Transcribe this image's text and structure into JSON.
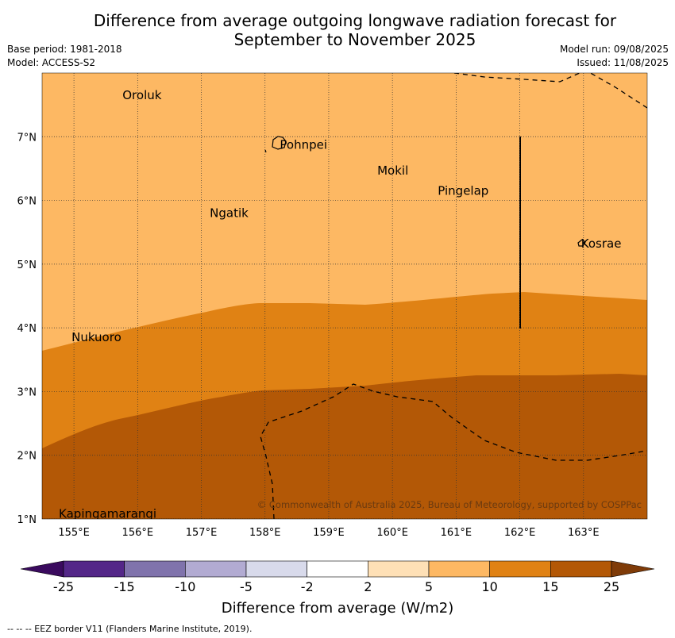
{
  "title_line1": "Difference from average outgoing longwave radiation forecast for",
  "title_line2": "September to November 2025",
  "base_period": "Base period: 1981-2018",
  "model": "Model: ACCESS-S2",
  "model_run": "Model run: 09/08/2025",
  "issued": "Issued: 11/08/2025",
  "copyright": "© Commonwealth of Australia 2025, Bureau of Meteorology, supported by COSPPac",
  "colorbar_label": "Difference from average (W/m2)",
  "footer": "-- -- -- EEZ border V11 (Flanders Marine Institute, 2019).",
  "map": {
    "lon_range": [
      154.5,
      164.0
    ],
    "lat_range": [
      1.0,
      8.0
    ],
    "lon_ticks": [
      "155°E",
      "156°E",
      "157°E",
      "158°E",
      "159°E",
      "160°E",
      "161°E",
      "162°E",
      "163°E"
    ],
    "lat_ticks": [
      "1°N",
      "2°N",
      "3°N",
      "4°N",
      "5°N",
      "6°N",
      "7°N"
    ],
    "places": [
      {
        "name": "Oroluk",
        "lon": 155.75,
        "lat": 7.65
      },
      {
        "name": "Pohnpei",
        "lon": 158.22,
        "lat": 6.87
      },
      {
        "name": "Mokil",
        "lon": 159.75,
        "lat": 6.47
      },
      {
        "name": "Pingelap",
        "lon": 160.7,
        "lat": 6.15
      },
      {
        "name": "Ngatik",
        "lon": 157.12,
        "lat": 5.8
      },
      {
        "name": "Kosrae",
        "lon": 162.95,
        "lat": 5.32
      },
      {
        "name": "Nukuoro",
        "lon": 154.95,
        "lat": 3.85
      },
      {
        "name": "Kapingamarangi",
        "lon": 154.75,
        "lat": 1.08
      }
    ]
  },
  "colorbar": {
    "colors": [
      "#3a0a5e",
      "#542788",
      "#8073ac",
      "#b2abd2",
      "#d8daeb",
      "#ffffff",
      "#fee0b6",
      "#fdb863",
      "#e08214",
      "#b35806",
      "#7f3b08"
    ],
    "tick_labels": [
      "-25",
      "-15",
      "-10",
      "-5",
      "-2",
      "2",
      "5",
      "10",
      "15",
      "25"
    ]
  }
}
